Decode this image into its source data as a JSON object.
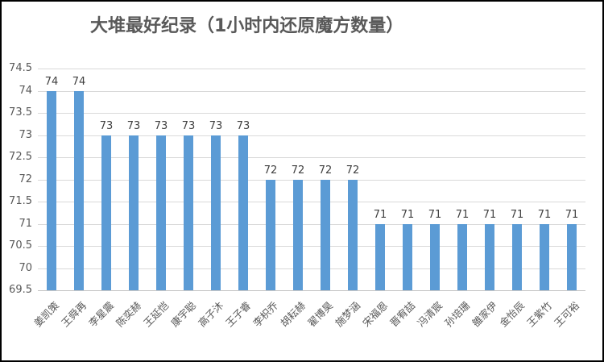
{
  "page": {
    "background": "#FFFFFF",
    "border_color": "#000000"
  },
  "chart_data": {
    "type": "bar",
    "title": "大堆最好纪录（1小时内还原魔方数量）",
    "categories": [
      "姜凯策",
      "王舜再",
      "李星震",
      "陈奕赫",
      "王延恺",
      "康宇聪",
      "高子沐",
      "王子睿",
      "李枳乔",
      "胡耘赫",
      "翟博昊",
      "施梦涵",
      "宋福恩",
      "晋宥喆",
      "冯清宸",
      "孙培珊",
      "雒家伊",
      "金怡辰",
      "王紫竹",
      "王可裕"
    ],
    "values": [
      74,
      74,
      73,
      73,
      73,
      73,
      73,
      73,
      72,
      72,
      72,
      72,
      71,
      71,
      71,
      71,
      71,
      71,
      71,
      71
    ],
    "data_labels": true,
    "xlabel": "",
    "ylabel": "",
    "ylim": [
      69.5,
      74.5
    ],
    "ytick_step": 0.5,
    "yticks": [
      "74.5",
      "74",
      "73.5",
      "73",
      "72.5",
      "72",
      "71.5",
      "71",
      "70.5",
      "70",
      "69.5"
    ],
    "grid": true,
    "legend": false,
    "x_label_rotation_deg": 45,
    "bar_color": "#5B9BD5",
    "gridline_color": "#D9D9D9",
    "axis_line_color": "#C6C6C6",
    "title_color": "#595959",
    "tick_label_color": "#595959",
    "data_label_color": "#404040"
  }
}
